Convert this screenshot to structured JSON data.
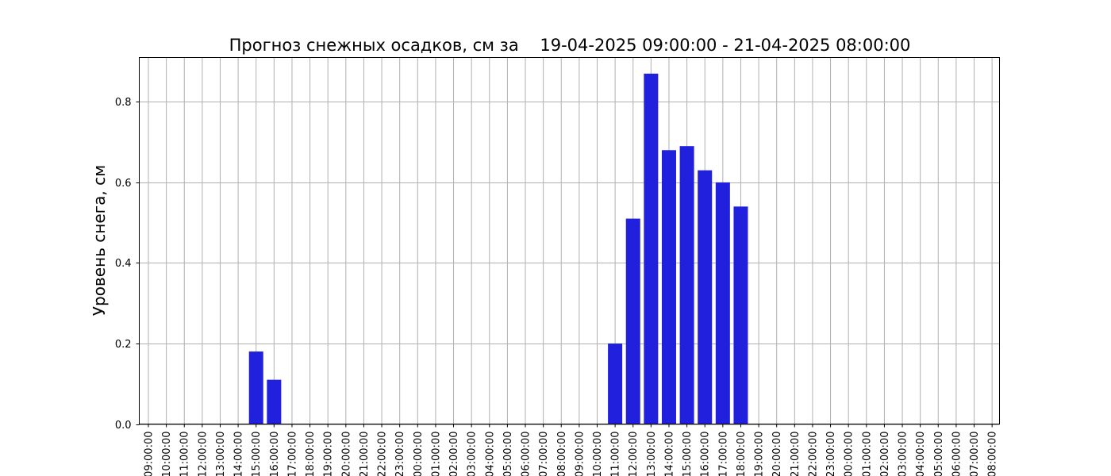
{
  "chart_data": {
    "type": "bar",
    "title": "Прогноз снежных осадков, см за    19-04-2025 09:00:00 - 21-04-2025 08:00:00",
    "xlabel": "",
    "ylabel": "Уровень снега, см",
    "ylim": [
      0,
      0.91
    ],
    "yticks": [
      "0.0",
      "0.2",
      "0.4",
      "0.6",
      "0.8"
    ],
    "grid": true,
    "bar_color": "#2020dd",
    "categories": [
      "09:00:00",
      "10:00:00",
      "11:00:00",
      "12:00:00",
      "13:00:00",
      "14:00:00",
      "15:00:00",
      "16:00:00",
      "17:00:00",
      "18:00:00",
      "19:00:00",
      "20:00:00",
      "21:00:00",
      "22:00:00",
      "23:00:00",
      "00:00:00",
      "01:00:00",
      "02:00:00",
      "03:00:00",
      "04:00:00",
      "05:00:00",
      "06:00:00",
      "07:00:00",
      "08:00:00",
      "09:00:00",
      "10:00:00",
      "11:00:00",
      "12:00:00",
      "13:00:00",
      "14:00:00",
      "15:00:00",
      "16:00:00",
      "17:00:00",
      "18:00:00",
      "19:00:00",
      "20:00:00",
      "21:00:00",
      "22:00:00",
      "23:00:00",
      "00:00:00",
      "01:00:00",
      "02:00:00",
      "03:00:00",
      "04:00:00",
      "05:00:00",
      "06:00:00",
      "07:00:00",
      "08:00:00"
    ],
    "values": [
      0,
      0,
      0,
      0,
      0,
      0,
      0.18,
      0.11,
      0,
      0,
      0,
      0,
      0,
      0,
      0,
      0,
      0,
      0,
      0,
      0,
      0,
      0,
      0,
      0,
      0,
      0,
      0.2,
      0.51,
      0.87,
      0.68,
      0.69,
      0.63,
      0.6,
      0.54,
      0,
      0,
      0,
      0,
      0,
      0,
      0,
      0,
      0,
      0,
      0,
      0,
      0,
      0
    ]
  }
}
